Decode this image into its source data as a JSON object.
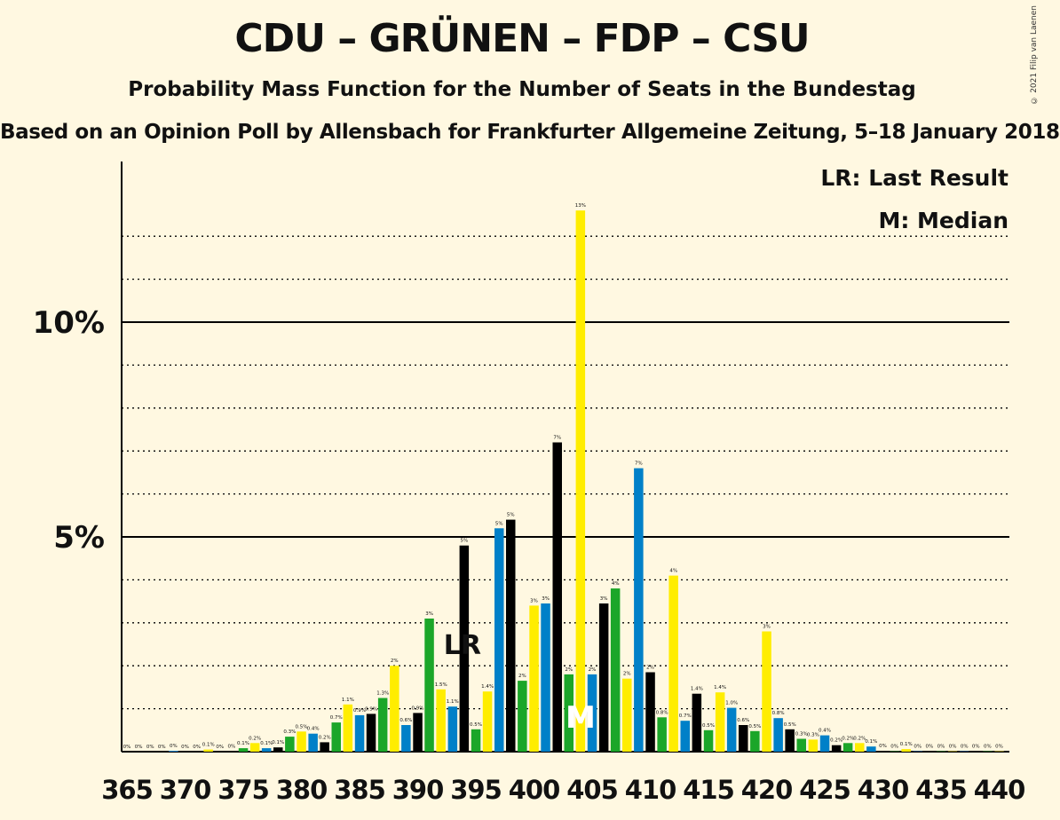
{
  "header": {
    "title": "CDU – GRÜNEN – FDP – CSU",
    "subtitle": "Probability Mass Function for the Number of Seats in the Bundestag",
    "subtitle2": "Based on an Opinion Poll by Allensbach for Frankfurter Allgemeine Zeitung, 5–18 January 2018",
    "copyright": "© 2021 Filip van Laenen"
  },
  "legend": {
    "last_result": "LR: Last Result",
    "median": "M: Median"
  },
  "colors": {
    "background": "#FFF8E1",
    "cdu": "#000000",
    "gruenen": "#1BA629",
    "fdp": "#FFED00",
    "csu": "#0080C8"
  },
  "chart_data": {
    "type": "bar",
    "x": [
      365,
      366,
      367,
      368,
      369,
      370,
      371,
      372,
      373,
      374,
      375,
      376,
      377,
      378,
      379,
      380,
      381,
      382,
      383,
      384,
      385,
      386,
      387,
      388,
      389,
      390,
      391,
      392,
      393,
      394,
      395,
      396,
      397,
      398,
      399,
      400,
      401,
      402,
      403,
      404,
      405,
      406,
      407,
      408,
      409,
      410,
      411,
      412,
      413,
      414,
      415,
      416,
      417,
      418,
      419,
      420,
      421,
      422,
      423,
      424,
      425,
      426,
      427,
      428,
      429,
      430,
      431,
      432,
      433,
      434,
      435,
      436,
      437,
      438,
      439,
      440
    ],
    "values": [
      0,
      0,
      0,
      0,
      0.02,
      0,
      0,
      0.05,
      0,
      0.01,
      0.08,
      0.2,
      0.08,
      0.1,
      0.35,
      0.47,
      0.42,
      0.22,
      0.68,
      1.1,
      0.85,
      0.88,
      1.25,
      2.0,
      0.62,
      0.9,
      3.1,
      1.45,
      1.05,
      4.8,
      0.52,
      1.4,
      5.2,
      5.4,
      1.65,
      3.4,
      3.45,
      7.2,
      1.8,
      12.6,
      1.8,
      3.45,
      3.8,
      1.7,
      6.6,
      1.85,
      0.8,
      4.1,
      0.72,
      1.35,
      0.5,
      1.38,
      1.02,
      0.62,
      0.48,
      2.8,
      0.78,
      0.52,
      0.3,
      0.28,
      0.38,
      0.15,
      0.2,
      0.2,
      0.12,
      0.02,
      0.01,
      0.06,
      0.01,
      0.01,
      0.01,
      0.01,
      0.01,
      0.01,
      0.01,
      0.01
    ],
    "labels": [
      "0%",
      "0%",
      "0%",
      "0%",
      "0%",
      "0%",
      "0%",
      "0.1%",
      "0%",
      "0%",
      "0.1%",
      "0.2%",
      "0.1%",
      "0.1%",
      "0.3%",
      "0.5%",
      "0.4%",
      "0.2%",
      "0.7%",
      "1.1%",
      "0.9%",
      "0.9%",
      "1.3%",
      "2%",
      "0.6%",
      "0.9%",
      "3%",
      "1.5%",
      "1.1%",
      "5%",
      "0.5%",
      "1.4%",
      "5%",
      "5%",
      "2%",
      "3%",
      "3%",
      "7%",
      "2%",
      "13%",
      "2%",
      "3%",
      "4%",
      "2%",
      "7%",
      "2%",
      "0.8%",
      "4%",
      "0.7%",
      "1.4%",
      "0.5%",
      "1.4%",
      "1.0%",
      "0.6%",
      "0.5%",
      "3%",
      "0.8%",
      "0.5%",
      "0.3%",
      "0.3%",
      "0.4%",
      "0.2%",
      "0.2%",
      "0.2%",
      "0.1%",
      "0%",
      "0%",
      "0.1%",
      "0%",
      "0%",
      "0%",
      "0%",
      "0%",
      "0%",
      "0%",
      "0%"
    ],
    "x_ticks": [
      "365",
      "370",
      "375",
      "380",
      "385",
      "390",
      "395",
      "400",
      "405",
      "410",
      "415",
      "420",
      "425",
      "430",
      "435",
      "440"
    ],
    "y_ticks": [
      "5%",
      "10%"
    ],
    "ylim": [
      0,
      13.5
    ],
    "last_result": 394,
    "last_result_label": "LR",
    "median": 404,
    "median_label": "M",
    "color_cycle": [
      "csu",
      "cdu",
      "gruenen",
      "fdp"
    ]
  }
}
